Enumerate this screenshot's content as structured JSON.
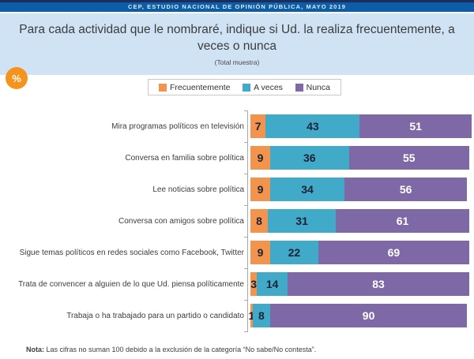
{
  "banner": {
    "text": "CEP, ESTUDIO NACIONAL DE OPINIÓN PÚBLICA, MAYO 2019"
  },
  "header": {
    "title_line1": "Para cada actividad que le nombraré, indique si Ud. la realiza frecuentemente, a",
    "title_line2": "veces o nunca",
    "subtitle": "(Total muestra)",
    "percent_badge": "%"
  },
  "colors": {
    "banner_blue": "#0b5da8",
    "header_light_blue": "#cfe3f4",
    "badge_orange": "#f5941d",
    "frecuentemente_orange": "#f2944e",
    "a_veces_teal": "#42aac9",
    "nunca_purple": "#7e68a5"
  },
  "chart_data": {
    "type": "bar",
    "orientation": "horizontal-stacked",
    "title": "Para cada actividad que le nombraré, indique si Ud. la realiza frecuentemente, a veces o nunca",
    "subtitle": "(Total muestra)",
    "unit": "%",
    "legend_position": "top",
    "value_labels": "inside",
    "xlim": [
      0,
      101
    ],
    "categories": [
      "Mira programas políticos en televisión",
      "Conversa en familia sobre política",
      "Lee noticias sobre política",
      "Conversa con amigos sobre política",
      "Sigue temas políticos en redes sociales como Facebook, Twitter",
      "Trata de convencer a alguien de lo que Ud. piensa políticamente",
      "Trabaja o ha trabajado para un partido o candidato"
    ],
    "series": [
      {
        "name": "Frecuentemente",
        "color": "#f2944e",
        "values": [
          7,
          9,
          9,
          8,
          9,
          3,
          1
        ]
      },
      {
        "name": "A veces",
        "color": "#42aac9",
        "values": [
          43,
          36,
          34,
          31,
          22,
          14,
          8
        ]
      },
      {
        "name": "Nunca",
        "color": "#7e68a5",
        "values": [
          51,
          55,
          56,
          61,
          69,
          83,
          90
        ]
      }
    ]
  },
  "note": {
    "label": "Nota:",
    "text": " Las cifras no suman 100 debido a la exclusión de la categoría “No sabe/No contesta”."
  }
}
